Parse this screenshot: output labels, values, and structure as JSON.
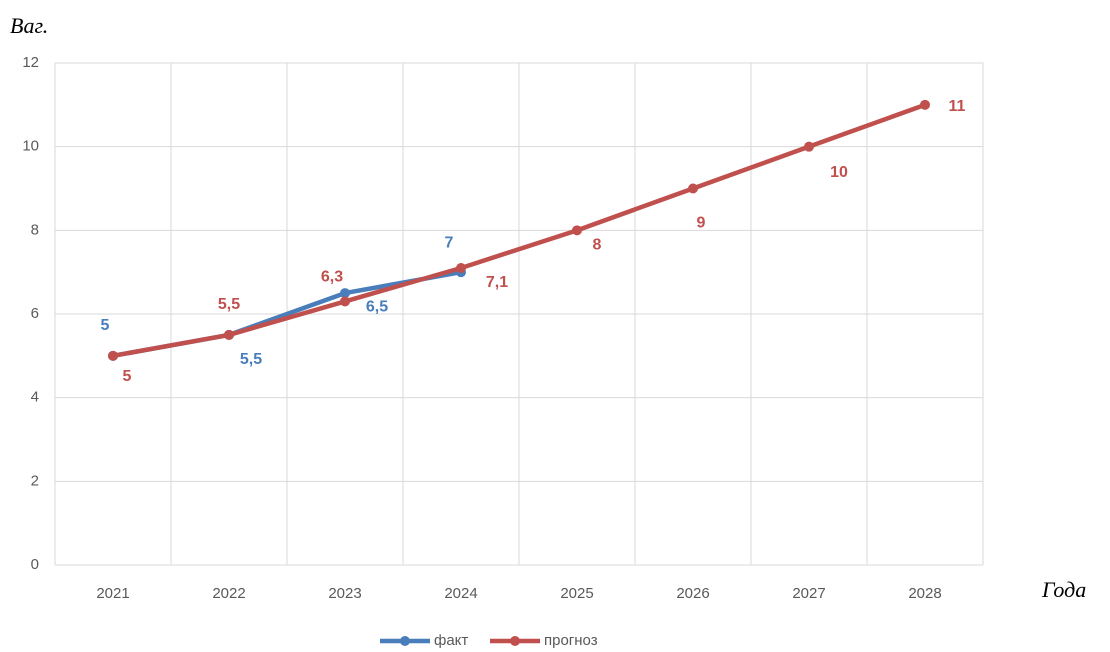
{
  "chart_data": {
    "type": "line",
    "y_label": "Ваг.",
    "x_label": "Года",
    "categories": [
      "2021",
      "2022",
      "2023",
      "2024",
      "2025",
      "2026",
      "2027",
      "2028"
    ],
    "series": [
      {
        "name": "факт",
        "color": "#4a7ebb",
        "values": [
          5,
          5.5,
          6.5,
          7,
          null,
          null,
          null,
          null
        ],
        "value_labels": [
          "5",
          "5,5",
          "6,5",
          "7",
          null,
          null,
          null,
          null
        ]
      },
      {
        "name": "прогноз",
        "color": "#c0504d",
        "values": [
          5,
          5.5,
          6.3,
          7.1,
          8,
          9,
          10,
          11
        ],
        "value_labels": [
          "5",
          "5,5",
          "6,3",
          "7,1",
          "8",
          "9",
          "10",
          "11"
        ]
      }
    ],
    "ylim": [
      0,
      12
    ],
    "yticks": [
      0,
      2,
      4,
      6,
      8,
      10,
      12
    ],
    "grid": true,
    "legend": "bottom"
  }
}
